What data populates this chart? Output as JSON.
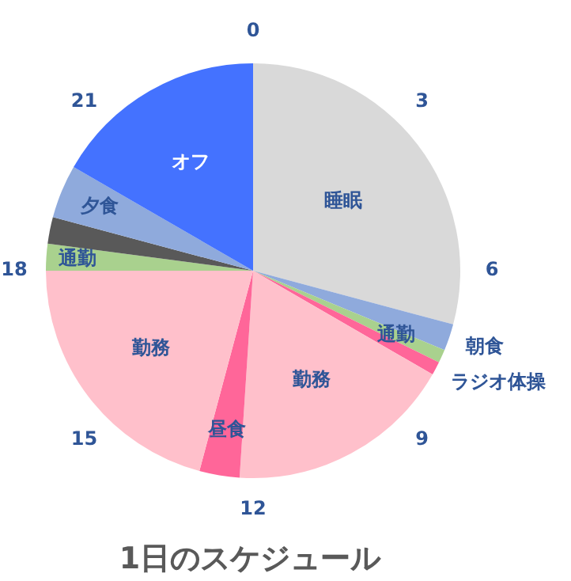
{
  "chart_data": {
    "type": "pie",
    "title": "1日のスケジュール",
    "categories": [
      "睡眠",
      "朝食",
      "通勤",
      "ラジオ体操",
      "勤務",
      "昼食",
      "勤務",
      "通勤",
      null,
      "夕食",
      "オフ"
    ],
    "values": [
      29.17,
      2.08,
      1.04,
      1.04,
      17.71,
      3.13,
      20.83,
      2.08,
      2.08,
      4.17,
      16.67
    ],
    "colors": [
      "#d9d9d9",
      "#8faadc",
      "#a9d18e",
      "#ff6699",
      "#ffc0cb",
      "#ff6699",
      "#ffc0cb",
      "#a9d18e",
      "#595959",
      "#8faadc",
      "#4472ff"
    ],
    "annotations": [
      "0",
      "3",
      "6",
      "9",
      "12",
      "15",
      "18",
      "21"
    ]
  }
}
